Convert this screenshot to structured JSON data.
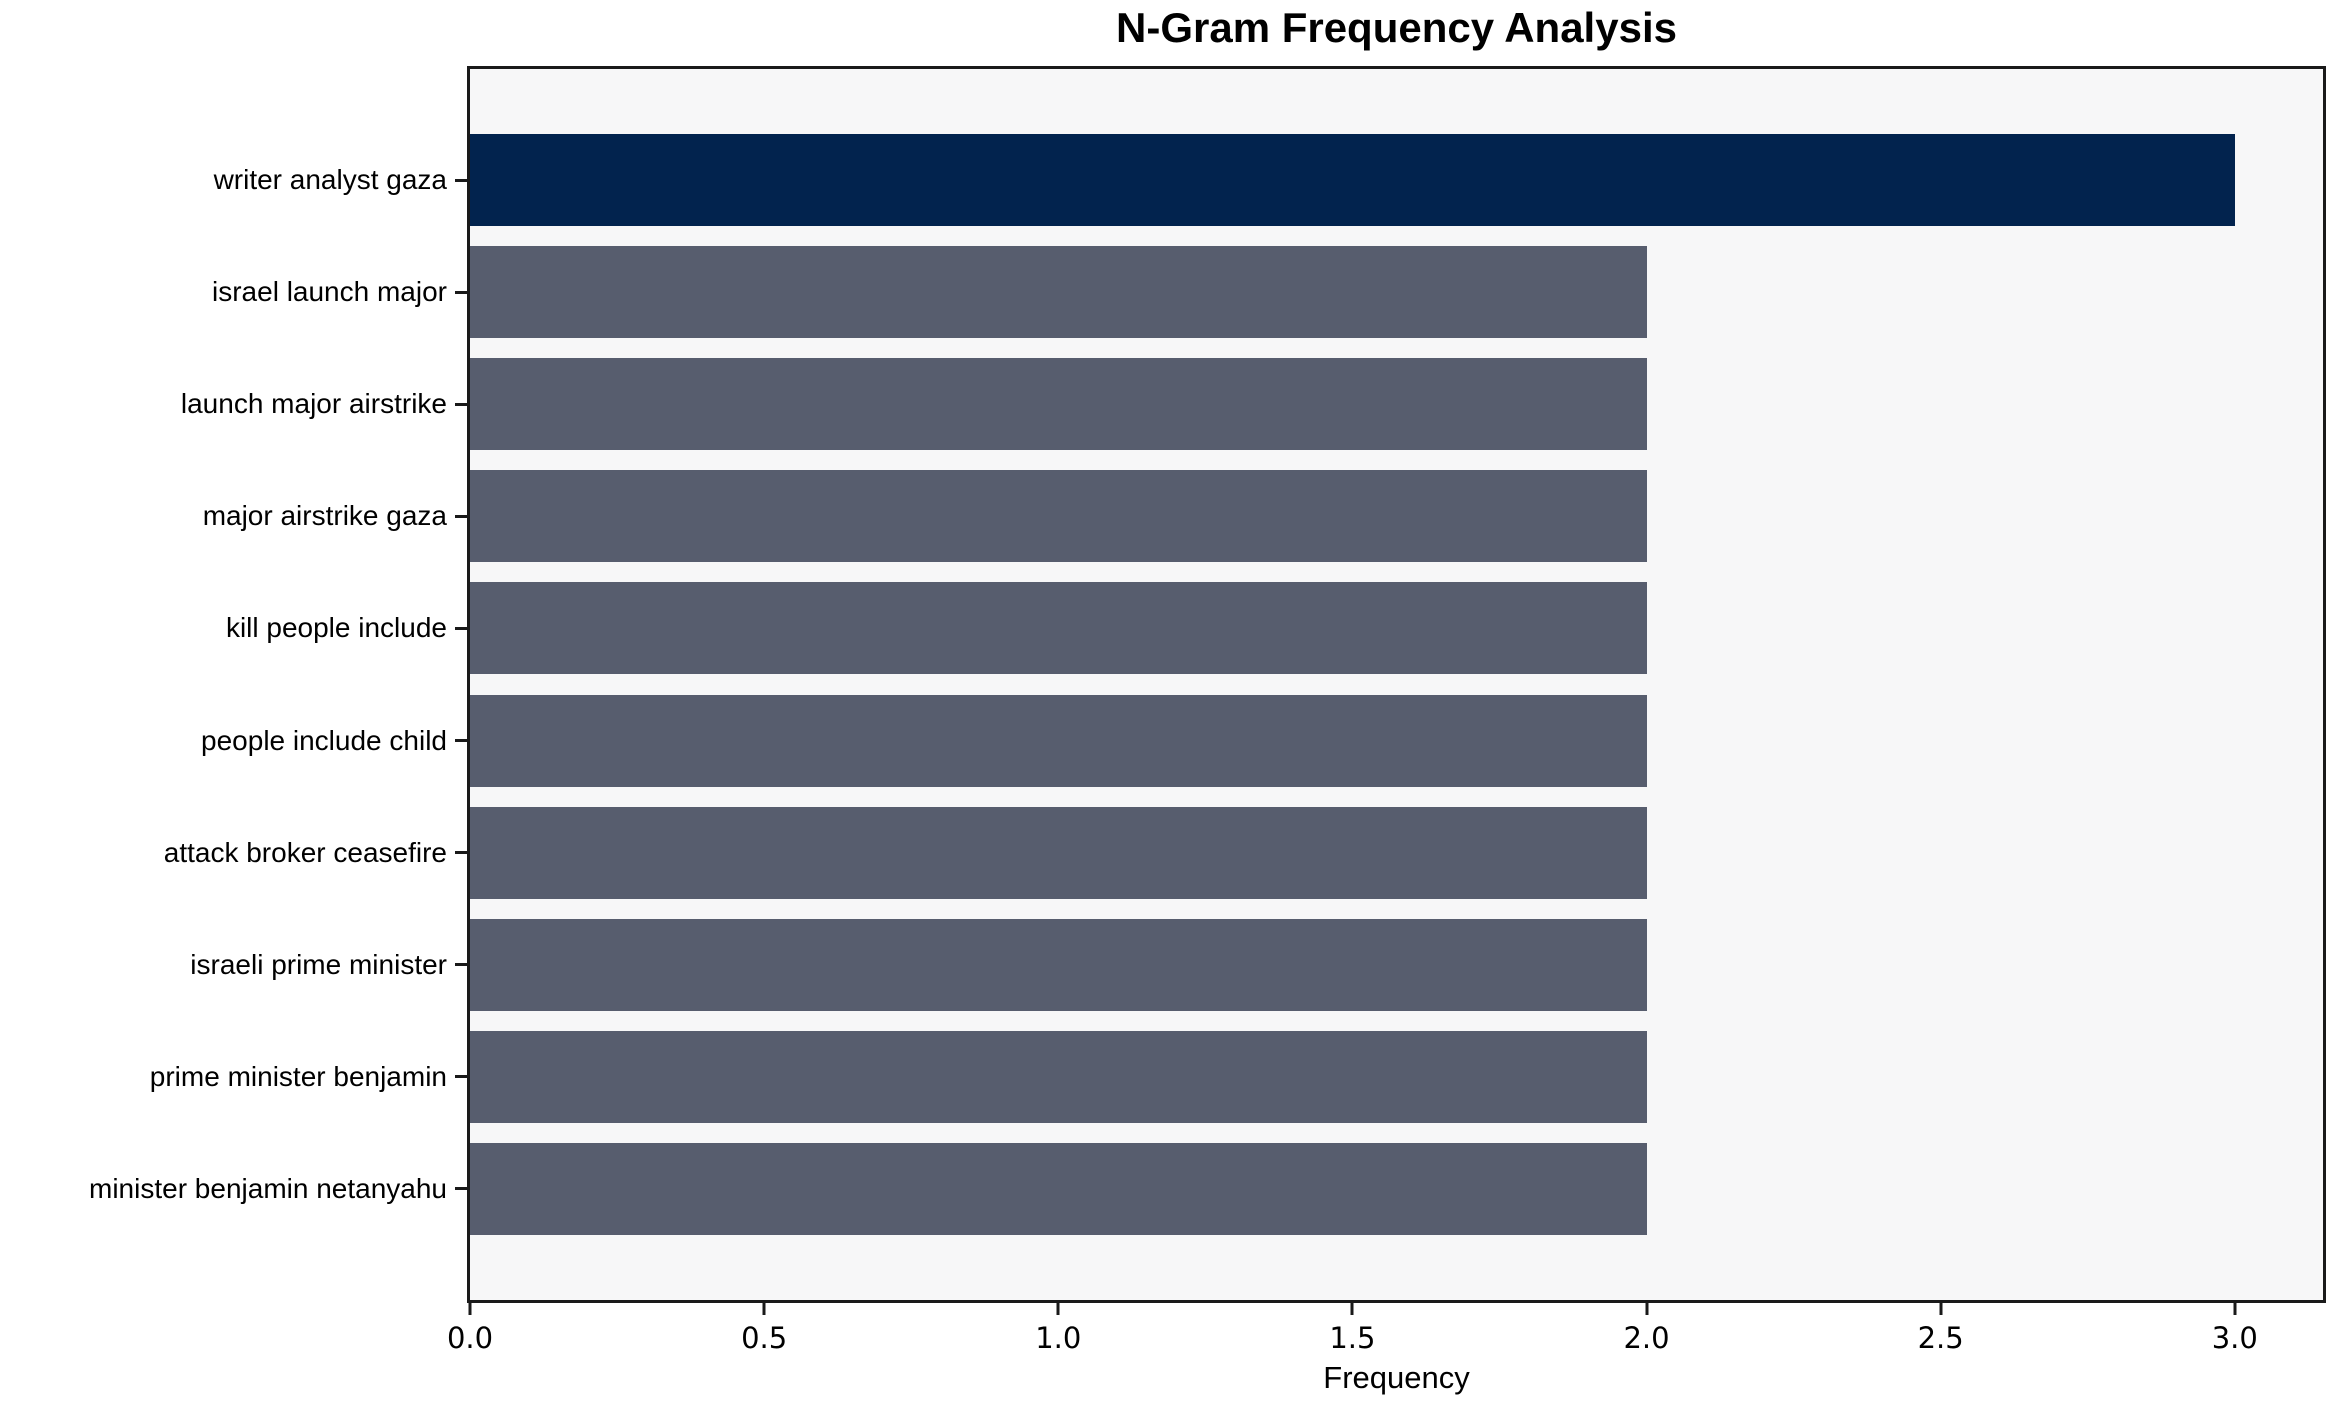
{
  "chart_data": {
    "type": "bar",
    "orientation": "horizontal",
    "title": "N-Gram Frequency Analysis",
    "xlabel": "Frequency",
    "ylabel": "",
    "categories": [
      "writer analyst gaza",
      "israel launch major",
      "launch major airstrike",
      "major airstrike gaza",
      "kill people include",
      "people include child",
      "attack broker ceasefire",
      "israeli prime minister",
      "prime minister benjamin",
      "minister benjamin netanyahu"
    ],
    "values": [
      3,
      2,
      2,
      2,
      2,
      2,
      2,
      2,
      2,
      2
    ],
    "bar_colors": [
      "#02234e",
      "#575d6e",
      "#575d6e",
      "#575d6e",
      "#575d6e",
      "#575d6e",
      "#575d6e",
      "#575d6e",
      "#575d6e",
      "#575d6e"
    ],
    "xlim": [
      0,
      3.15
    ],
    "xticks": [
      0.0,
      0.5,
      1.0,
      1.5,
      2.0,
      2.5,
      3.0
    ],
    "xtick_labels": [
      "0.0",
      "0.5",
      "1.0",
      "1.5",
      "2.0",
      "2.5",
      "3.0"
    ],
    "grid": false,
    "legend": null,
    "colors": {
      "highlight_bar": "#02234e",
      "default_bar": "#575d6e",
      "plot_background": "#f7f7f8",
      "figure_background": "#ffffff",
      "spine": "#1a1a1a",
      "text": "#000000"
    }
  }
}
